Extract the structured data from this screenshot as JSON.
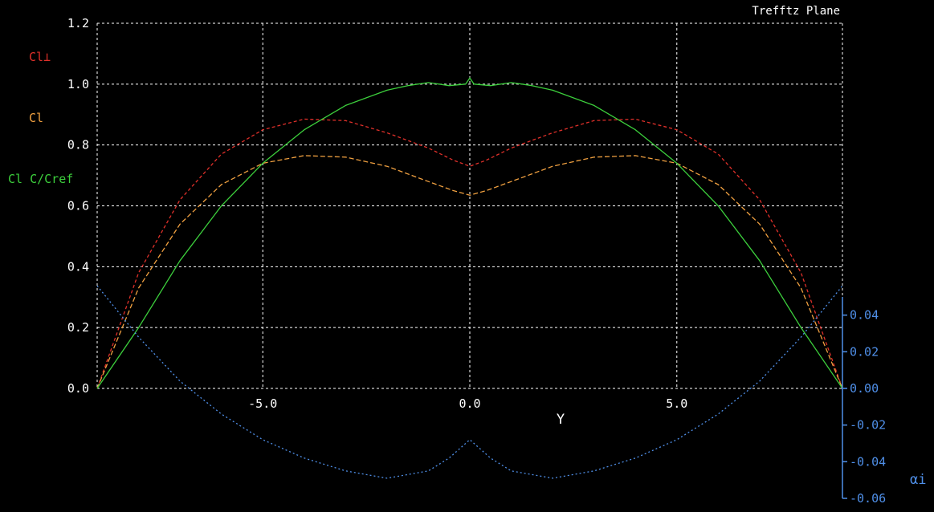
{
  "chart_data": {
    "type": "line",
    "title": "Trefftz Plane",
    "xlabel": "Y",
    "xlim": [
      -9.0,
      9.0
    ],
    "ylim": [
      0.0,
      1.2
    ],
    "y2lim": [
      -0.06,
      0.04
    ],
    "x_ticks": [
      -5.0,
      0.0,
      5.0
    ],
    "x_tick_labels": [
      "-5.0",
      "0.0",
      "5.0"
    ],
    "y_ticks": [
      0.0,
      0.2,
      0.4,
      0.6,
      0.8,
      1.0,
      1.2
    ],
    "y_tick_labels": [
      "0.0",
      "0.2",
      "0.4",
      "0.6",
      "0.8",
      "1.0",
      "1.2"
    ],
    "y2_ticks": [
      -0.06,
      -0.04,
      -0.02,
      0.0,
      0.02,
      0.04
    ],
    "y2_tick_labels": [
      "-0.06",
      "-0.04",
      "-0.02",
      "0.00",
      "0.02",
      "0.04"
    ],
    "y2_label": "αi",
    "grid": true,
    "legend_labels": [
      "Cl⊥",
      "Cl",
      "Cl C/Cref"
    ],
    "colors": {
      "cl_perp": "#e0302a",
      "cl": "#f0a040",
      "cl_c_cref": "#3ccf3c",
      "alpha_i": "#4f8fe8",
      "grid": "#ffffff",
      "axis_right": "#4f8fe8"
    },
    "series": [
      {
        "name": "Cl⊥",
        "axis": "left",
        "style": "dashed",
        "x": [
          -9.0,
          -8.0,
          -7.0,
          -6.0,
          -5.0,
          -4.0,
          -3.0,
          -2.0,
          -1.0,
          -0.4,
          0.0,
          0.4,
          1.0,
          2.0,
          3.0,
          4.0,
          5.0,
          6.0,
          7.0,
          8.0,
          9.0
        ],
        "y": [
          0.0,
          0.38,
          0.62,
          0.77,
          0.85,
          0.885,
          0.88,
          0.84,
          0.79,
          0.75,
          0.73,
          0.75,
          0.79,
          0.84,
          0.88,
          0.885,
          0.85,
          0.77,
          0.62,
          0.38,
          0.0
        ]
      },
      {
        "name": "Cl",
        "axis": "left",
        "style": "dashed",
        "x": [
          -9.0,
          -8.0,
          -7.0,
          -6.0,
          -5.0,
          -4.0,
          -3.0,
          -2.0,
          -1.0,
          -0.4,
          0.0,
          0.4,
          1.0,
          2.0,
          3.0,
          4.0,
          5.0,
          6.0,
          7.0,
          8.0,
          9.0
        ],
        "y": [
          0.0,
          0.33,
          0.54,
          0.67,
          0.74,
          0.765,
          0.76,
          0.73,
          0.68,
          0.65,
          0.635,
          0.65,
          0.68,
          0.73,
          0.76,
          0.765,
          0.74,
          0.67,
          0.54,
          0.33,
          0.0
        ]
      },
      {
        "name": "Cl C/Cref",
        "axis": "left",
        "style": "solid",
        "x": [
          -9.0,
          -8.0,
          -7.0,
          -6.0,
          -5.0,
          -4.0,
          -3.0,
          -2.0,
          -1.5,
          -1.0,
          -0.5,
          -0.1,
          0.0,
          0.1,
          0.5,
          1.0,
          1.5,
          2.0,
          3.0,
          4.0,
          5.0,
          6.0,
          7.0,
          8.0,
          9.0
        ],
        "y": [
          0.0,
          0.2,
          0.42,
          0.6,
          0.74,
          0.85,
          0.93,
          0.98,
          0.995,
          1.005,
          0.995,
          1.0,
          1.02,
          1.0,
          0.995,
          1.005,
          0.995,
          0.98,
          0.93,
          0.85,
          0.74,
          0.6,
          0.42,
          0.2,
          0.0
        ]
      },
      {
        "name": "αi",
        "axis": "right",
        "style": "dotted",
        "x": [
          -9.0,
          -8.0,
          -7.0,
          -6.0,
          -5.0,
          -4.0,
          -3.0,
          -2.0,
          -1.0,
          -0.5,
          0.0,
          0.5,
          1.0,
          2.0,
          3.0,
          4.0,
          5.0,
          6.0,
          7.0,
          8.0,
          9.0
        ],
        "y": [
          0.056,
          0.028,
          0.004,
          -0.014,
          -0.028,
          -0.038,
          -0.045,
          -0.049,
          -0.045,
          -0.038,
          -0.028,
          -0.038,
          -0.045,
          -0.049,
          -0.045,
          -0.038,
          -0.028,
          -0.014,
          0.004,
          0.028,
          0.056
        ]
      }
    ]
  }
}
